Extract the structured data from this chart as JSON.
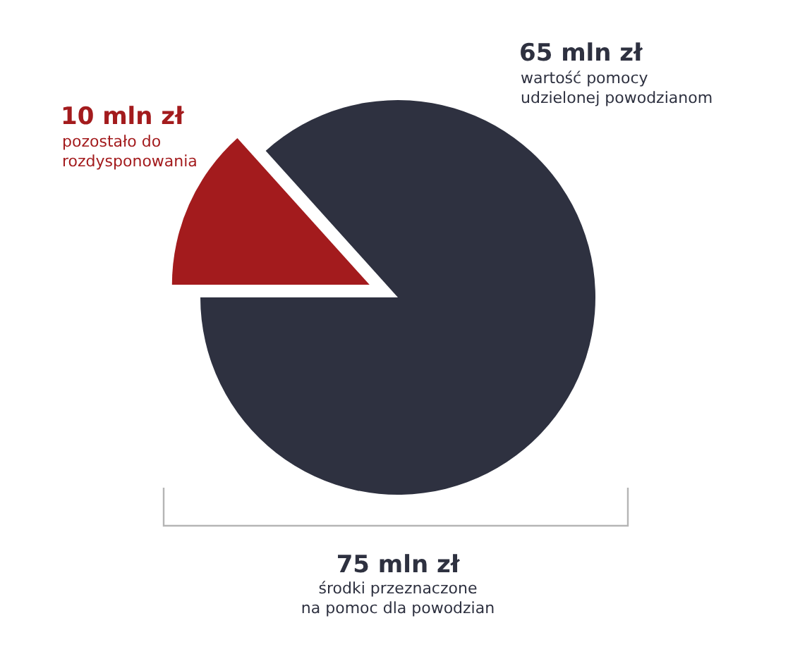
{
  "chart_data": {
    "type": "pie",
    "categories": [
      "pozostało do rozdysponowania",
      "wartość pomocy udzielonej powodzianom"
    ],
    "values": [
      10,
      65
    ],
    "colors": [
      "#a31b1d",
      "#2e3140"
    ],
    "value_labels": [
      "10 mln zł",
      "65 mln zł"
    ],
    "annotations": [
      "75 mln zł",
      "środki przeznaczone na pomoc dla powodzian"
    ]
  }
}
